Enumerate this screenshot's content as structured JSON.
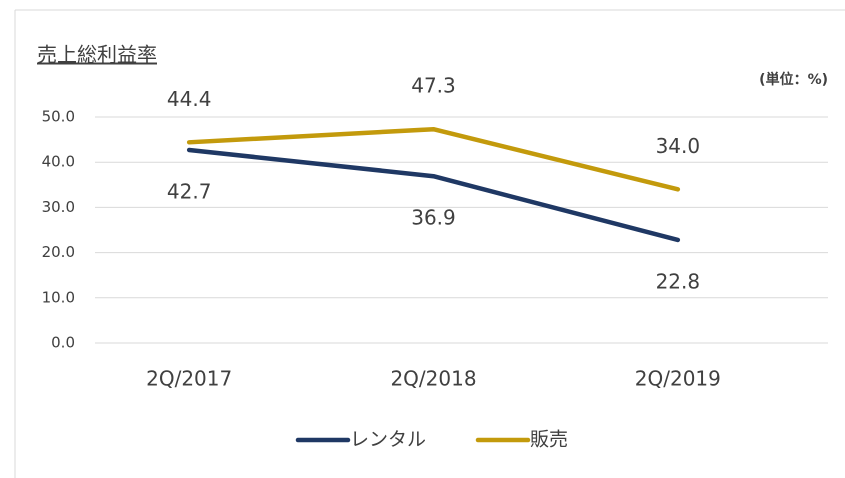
{
  "chart_data": {
    "type": "line",
    "title": "売上総利益率",
    "unit_label": "(単位：%)",
    "categories": [
      "2Q/2017",
      "2Q/2018",
      "2Q/2019"
    ],
    "series": [
      {
        "name": "レンタル",
        "color": "#1f3864",
        "values": [
          42.7,
          36.9,
          22.8
        ]
      },
      {
        "name": "販売",
        "color": "#c39a0c",
        "values": [
          44.4,
          47.3,
          34.0
        ],
        "value_labels": [
          "44.4",
          "47.3",
          "34.0"
        ]
      }
    ],
    "ylim": [
      0,
      50
    ],
    "yticks": [
      {
        "value": 0,
        "label": "0.0"
      },
      {
        "value": 10,
        "label": "10.0"
      },
      {
        "value": 20,
        "label": "20.0"
      },
      {
        "value": 30,
        "label": "30.0"
      },
      {
        "value": 40,
        "label": "40.0"
      },
      {
        "value": 50,
        "label": "50.0"
      }
    ],
    "grid": true,
    "legend": "bottom"
  }
}
